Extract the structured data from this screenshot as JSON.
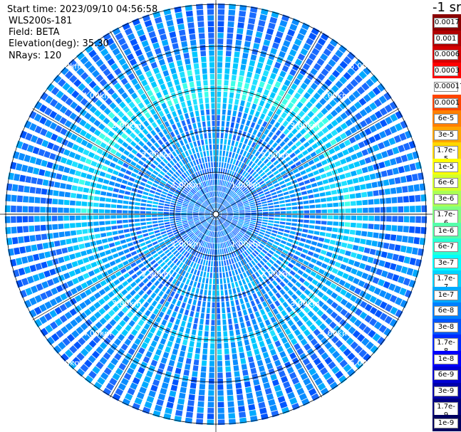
{
  "header": {
    "start_time": "Start time: 2023/09/10 04:56:58",
    "instrument": "WLS200s-181",
    "field": "Field: BETA",
    "elevation": "Elevation(deg): 35.30",
    "nrays": "NRays: 120"
  },
  "colorbar": {
    "unit": "-1 sr",
    "labels": [
      "0.0017",
      "0.001",
      "0.0006",
      "0.0003",
      "0.00017",
      "0.0001",
      "6e-5",
      "3e-5",
      "1.7e-5",
      "1e-5",
      "6e-6",
      "3e-6",
      "1.7e-6",
      "1e-6",
      "6e-7",
      "3e-7",
      "1.7e-7",
      "1e-7",
      "6e-8",
      "3e-8",
      "1.7e-8",
      "1e-8",
      "6e-9",
      "3e-9",
      "1.7e-9",
      "1e-9"
    ],
    "colors": [
      "#8b0000",
      "#b00000",
      "#d40000",
      "#ff0000",
      "#ffffff",
      "#ff4500",
      "#ff7f00",
      "#ffa500",
      "#ffd700",
      "#ffff00",
      "#d4ff2a",
      "#aaff55",
      "#80ff80",
      "#55ffaa",
      "#2affd4",
      "#00ffff",
      "#00d4ff",
      "#00aaff",
      "#0080ff",
      "#0055ff",
      "#002aff",
      "#0000ff",
      "#0000d4",
      "#0000aa",
      "#000080",
      "#000060"
    ]
  },
  "range_rings": {
    "labels": [
      "1.00km",
      "2.00km",
      "3.00km",
      "4.00km",
      "5.00km"
    ]
  }
}
